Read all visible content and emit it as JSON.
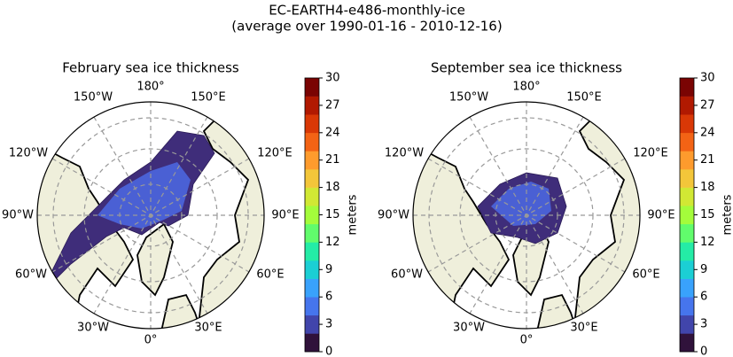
{
  "title": [
    "EC-EARTH4-e486-monthly-ice",
    "(average over 1990-01-16 - 2010-12-16)"
  ],
  "colormap": [
    "#30123b",
    "#4145ab",
    "#4675ed",
    "#39a2fc",
    "#1bcfd4",
    "#24eca6",
    "#61fc6c",
    "#a4fc3b",
    "#d1e834",
    "#f3c63a",
    "#fe9b2d",
    "#f36315",
    "#d93806",
    "#b11901",
    "#7a0403"
  ],
  "panels": [
    {
      "title": "February sea ice thickness",
      "longitude_labels": [
        "180°",
        "150°E",
        "120°E",
        "90°E",
        "60°E",
        "30°E",
        "0°",
        "30°W",
        "60°W",
        "90°W",
        "120°W",
        "150°W"
      ],
      "colorbar": {
        "label": "meters",
        "lim": [
          0,
          30
        ],
        "ticks": [
          0,
          3,
          6,
          9,
          12,
          15,
          18,
          21,
          24,
          27,
          30
        ]
      }
    },
    {
      "title": "September sea ice thickness",
      "longitude_labels": [
        "180°",
        "150°E",
        "120°E",
        "90°E",
        "60°E",
        "30°E",
        "0°",
        "30°W",
        "60°W",
        "90°W",
        "120°W",
        "150°W"
      ],
      "colorbar": {
        "label": "meters",
        "lim": [
          0,
          30
        ],
        "ticks": [
          0,
          3,
          6,
          9,
          12,
          15,
          18,
          21,
          24,
          27,
          30
        ]
      }
    }
  ]
}
